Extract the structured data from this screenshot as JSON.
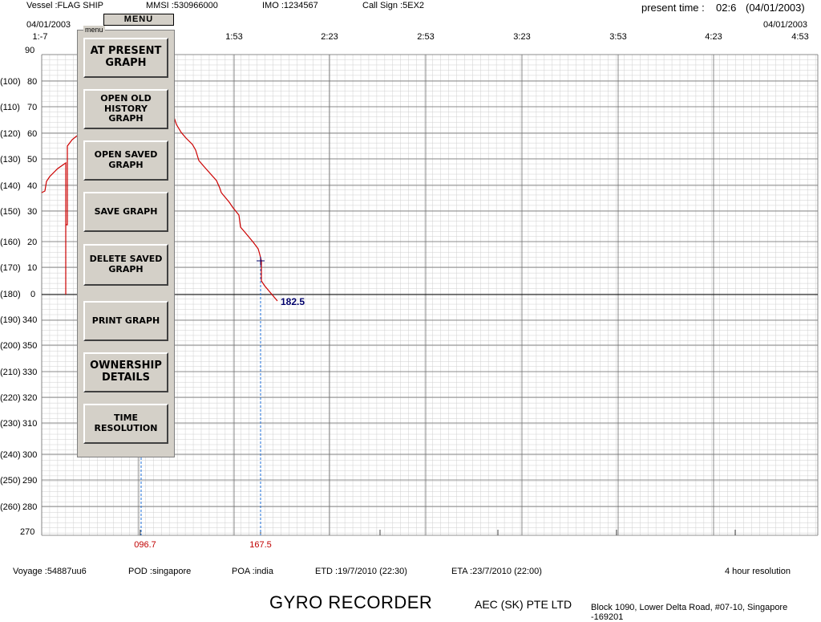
{
  "header": {
    "vessel": "Vessel :FLAG SHIP",
    "mmsi": "MMSI :530966000",
    "imo": "IMO :1234567",
    "call_sign": "Call Sign :5EX2",
    "present_time_label": "present time :",
    "present_time_value": "02:6",
    "present_date": "(04/01/2003)",
    "start_date": "04/01/2003",
    "end_date": "04/01/2003"
  },
  "time_axis": [
    "1:-7",
    "1:53",
    "2:23",
    "2:53",
    "3:23",
    "3:53",
    "4:23",
    "4:53"
  ],
  "y_axis": {
    "primary": [
      "90",
      "80",
      "70",
      "60",
      "50",
      "40",
      "30",
      "20",
      "10",
      "0",
      "340",
      "350",
      "330",
      "320",
      "310",
      "300",
      "290",
      "280",
      "270"
    ],
    "alternate": [
      "(100)",
      "(110)",
      "(120)",
      "(130)",
      "(140)",
      "(150)",
      "(160)",
      "(170)",
      "(180)",
      "(190)",
      "(200)",
      "(210)",
      "(220)",
      "(230)",
      "(240)",
      "(250)",
      "(260)"
    ]
  },
  "menu": {
    "title": "MENU",
    "caption": "menu",
    "items": [
      "AT PRESENT\nGRAPH",
      "OPEN OLD\nHISTORY\nGRAPH",
      "OPEN SAVED\nGRAPH",
      "SAVE GRAPH",
      "DELETE SAVED\nGRAPH",
      "PRINT GRAPH",
      "OWNERSHIP\nDETAILS",
      "TIME\nRESOLUTION"
    ]
  },
  "markers": {
    "left_value": "096.7",
    "right_value": "167.5",
    "heading_readout": "182.5"
  },
  "colors": {
    "trace": "#cc0000",
    "marker_line": "#1e6fd9",
    "readout": "#00006b",
    "menu_bg": "#d4d0c8"
  },
  "footer": {
    "voyage": "Voyage :54887uu6",
    "pod": "POD :singapore",
    "poa": "POA :india",
    "etd": "ETD :19/7/2010 (22:30)",
    "eta": "ETA :23/7/2010 (22:00)",
    "resolution": "4 hour resolution"
  },
  "branding": {
    "product": "GYRO RECORDER",
    "company": "AEC (SK) PTE LTD",
    "address": "Block 1090, Lower Delta Road, #07-10, Singapore -169201"
  }
}
